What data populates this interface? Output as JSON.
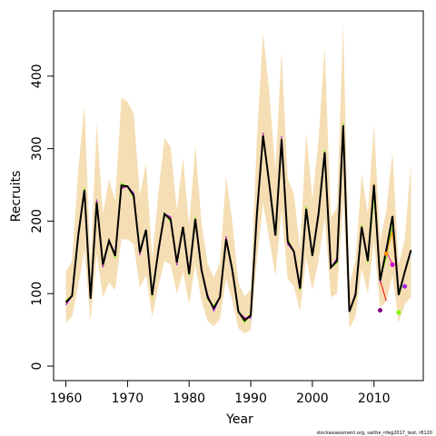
{
  "chart_data": {
    "type": "line",
    "xlabel": "Year",
    "ylabel": "Recruits",
    "footnote": "stockassessment.org, saithe_nfeg2017_test, r8120",
    "xlim": [
      1958,
      2018
    ],
    "ylim": [
      -20,
      490
    ],
    "xticks": [
      1960,
      1970,
      1980,
      1990,
      2000,
      2010
    ],
    "yticks": [
      0,
      100,
      200,
      300,
      400
    ],
    "grid": false,
    "legend": "none",
    "colors": {
      "band": "#f5deb3",
      "main": "#000000",
      "retro": [
        "#ff0000",
        "#e0168a",
        "#a020f0",
        "#7cfc00",
        "#ff8c00",
        "#cd00cd",
        "#800080"
      ],
      "dot_colors": [
        "#800080",
        "#ff8c00",
        "#cd00cd",
        "#7cfc00",
        "#a020f0"
      ]
    },
    "years": [
      1960,
      1961,
      1962,
      1963,
      1964,
      1965,
      1966,
      1967,
      1968,
      1969,
      1970,
      1971,
      1972,
      1973,
      1974,
      1975,
      1976,
      1977,
      1978,
      1979,
      1980,
      1981,
      1982,
      1983,
      1984,
      1985,
      1986,
      1987,
      1988,
      1989,
      1990,
      1991,
      1992,
      1993,
      1994,
      1995,
      1996,
      1997,
      1998,
      1999,
      2000,
      2001,
      2002,
      2003,
      2004,
      2005,
      2006,
      2007,
      2008,
      2009,
      2010,
      2011,
      2012,
      2013,
      2014,
      2015,
      2016
    ],
    "estimate": [
      88,
      97,
      180,
      243,
      93,
      226,
      140,
      173,
      152,
      249,
      248,
      235,
      157,
      188,
      98,
      159,
      210,
      202,
      143,
      192,
      127,
      203,
      133,
      95,
      80,
      95,
      175,
      133,
      75,
      63,
      70,
      210,
      318,
      252,
      180,
      313,
      172,
      158,
      107,
      217,
      152,
      210,
      295,
      136,
      145,
      332,
      75,
      98,
      192,
      145,
      250,
      118,
      160,
      207,
      98,
      130,
      160
    ],
    "lower": [
      60,
      68,
      110,
      160,
      62,
      155,
      95,
      115,
      105,
      175,
      175,
      168,
      108,
      125,
      68,
      110,
      145,
      140,
      100,
      130,
      85,
      140,
      90,
      62,
      55,
      65,
      120,
      90,
      52,
      45,
      50,
      145,
      225,
      175,
      125,
      215,
      120,
      110,
      75,
      150,
      105,
      145,
      205,
      95,
      100,
      230,
      52,
      68,
      135,
      100,
      172,
      80,
      90,
      125,
      60,
      85,
      95
    ],
    "upper": [
      130,
      145,
      270,
      360,
      140,
      335,
      210,
      258,
      228,
      370,
      365,
      348,
      235,
      280,
      148,
      238,
      315,
      302,
      215,
      287,
      193,
      305,
      198,
      142,
      122,
      142,
      262,
      200,
      115,
      96,
      106,
      315,
      460,
      378,
      270,
      435,
      258,
      238,
      162,
      322,
      230,
      312,
      440,
      205,
      218,
      472,
      112,
      146,
      265,
      210,
      333,
      172,
      215,
      295,
      140,
      175,
      280
    ],
    "retrospective": [
      {
        "start": 2009,
        "values": [
          148,
          248,
          118,
          90
        ]
      },
      {
        "start": 2009,
        "values": [
          150,
          245,
          120,
          158,
          140
        ]
      },
      {
        "start": 2009,
        "values": [
          145,
          240,
          115,
          165,
          190,
          110
        ]
      },
      {
        "start": 2009,
        "values": [
          142,
          235,
          120,
          150,
          195,
          105,
          112
        ]
      },
      {
        "start": 2009,
        "values": [
          146,
          252,
          125,
          155,
          185,
          100
        ]
      }
    ],
    "terminal_points": [
      {
        "x": 2011,
        "y": 77
      },
      {
        "x": 2012,
        "y": 155
      },
      {
        "x": 2013,
        "y": 140
      },
      {
        "x": 2014,
        "y": 74
      },
      {
        "x": 2015,
        "y": 110
      }
    ]
  }
}
